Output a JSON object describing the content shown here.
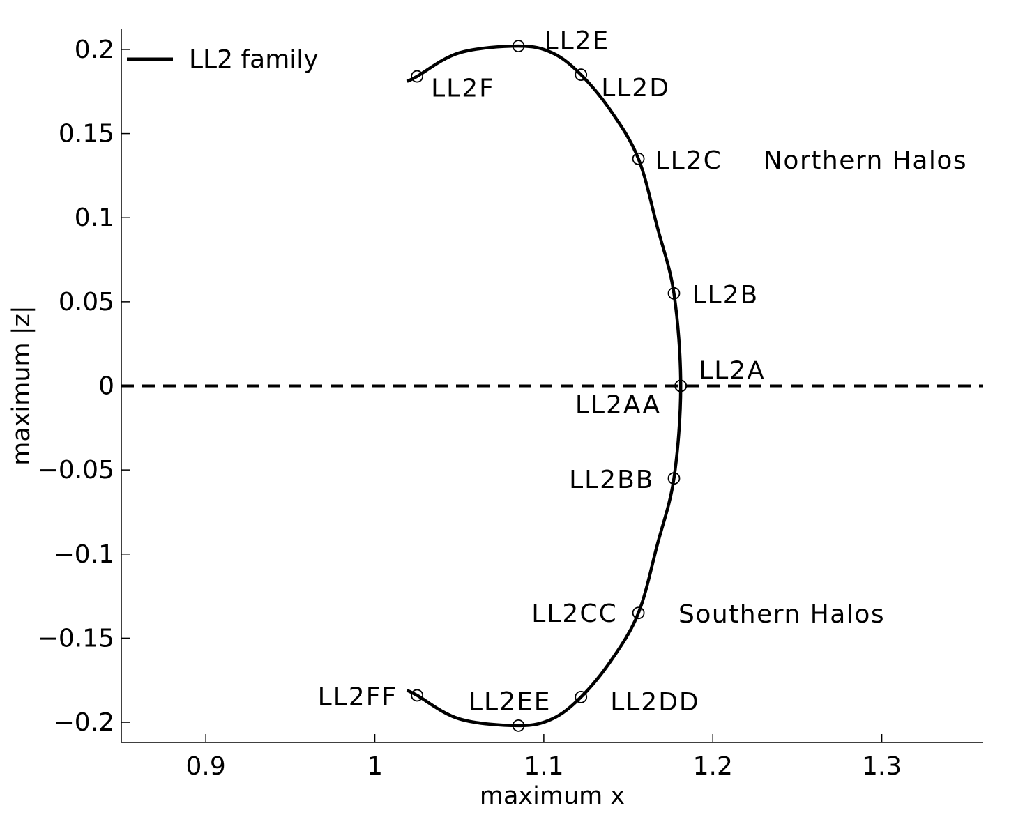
{
  "chart_data": {
    "type": "line",
    "xlabel": "maximum x",
    "ylabel": "maximum |z|",
    "xlim": [
      0.85,
      1.36
    ],
    "ylim": [
      -0.212,
      0.212
    ],
    "xticks": [
      0.9,
      1.0,
      1.1,
      1.2,
      1.3
    ],
    "xtick_labels": [
      "0.9",
      "1",
      "1.1",
      "1.2",
      "1.3"
    ],
    "yticks": [
      0.2,
      0.15,
      0.1,
      0.05,
      0,
      -0.05,
      -0.1,
      -0.15,
      -0.2
    ],
    "ytick_labels": [
      "0.2",
      "0.15",
      "0.1",
      "0.05",
      "0",
      "−0.05",
      "−0.1",
      "−0.15",
      "−0.2"
    ],
    "grid": false,
    "legend": {
      "placement": "top-left",
      "entries": [
        "LL2 family"
      ]
    },
    "reference_line": {
      "y": 0,
      "style": "dashed"
    },
    "series": [
      {
        "name": "LL2 family",
        "x": [
          1.019,
          1.025,
          1.05,
          1.085,
          1.105,
          1.122,
          1.14,
          1.156,
          1.167,
          1.177,
          1.181,
          1.177,
          1.167,
          1.156,
          1.14,
          1.122,
          1.105,
          1.085,
          1.05,
          1.025,
          1.019
        ],
        "y": [
          0.181,
          0.184,
          0.198,
          0.202,
          0.198,
          0.185,
          0.163,
          0.135,
          0.095,
          0.055,
          0.0,
          -0.055,
          -0.095,
          -0.135,
          -0.163,
          -0.185,
          -0.198,
          -0.202,
          -0.198,
          -0.184,
          -0.181
        ]
      }
    ],
    "points": [
      {
        "label": "LL2E",
        "x": 1.085,
        "y": 0.202
      },
      {
        "label": "LL2F",
        "x": 1.025,
        "y": 0.184
      },
      {
        "label": "LL2D",
        "x": 1.122,
        "y": 0.185
      },
      {
        "label": "LL2C",
        "x": 1.156,
        "y": 0.135
      },
      {
        "label": "LL2B",
        "x": 1.177,
        "y": 0.055
      },
      {
        "label": "LL2A",
        "x": 1.181,
        "y": 0.0
      },
      {
        "label": "LL2AA",
        "x": 1.181,
        "y": 0.0
      },
      {
        "label": "LL2BB",
        "x": 1.177,
        "y": -0.055
      },
      {
        "label": "LL2CC",
        "x": 1.156,
        "y": -0.135
      },
      {
        "label": "LL2DD",
        "x": 1.122,
        "y": -0.185
      },
      {
        "label": "LL2EE",
        "x": 1.085,
        "y": -0.202
      },
      {
        "label": "LL2FF",
        "x": 1.025,
        "y": -0.184
      }
    ],
    "annotations": [
      {
        "text": "Northern Halos"
      },
      {
        "text": "Southern Halos"
      }
    ]
  }
}
